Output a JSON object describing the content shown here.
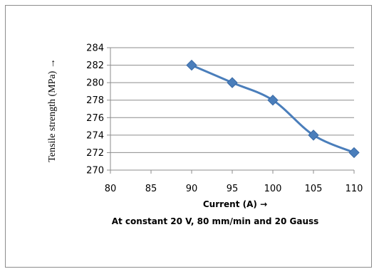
{
  "chart_data": {
    "type": "line",
    "x": [
      90,
      95,
      100,
      105,
      110
    ],
    "series": [
      {
        "values": [
          282,
          280,
          278,
          274,
          272
        ]
      }
    ],
    "xlabel": "Current (A) →",
    "ylabel": "Tensile strength (MPa) →",
    "xlim": [
      80,
      110
    ],
    "ylim": [
      270,
      284
    ],
    "xticks": [
      80,
      85,
      90,
      95,
      100,
      105,
      110
    ],
    "yticks": [
      270,
      272,
      274,
      276,
      278,
      280,
      282,
      284
    ],
    "annotation": "At constant 20 V, 80 mm/min and 20 Gauss",
    "grid": "horizontal",
    "line_color": "#4a7ebb",
    "marker": "diamond"
  }
}
